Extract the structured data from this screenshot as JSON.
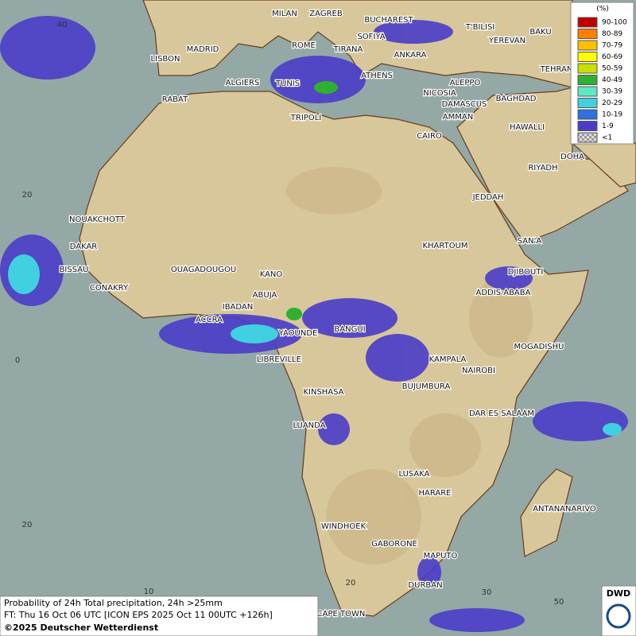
{
  "legend": {
    "unit": "(%)",
    "entries": [
      {
        "label": "90-100",
        "color": "#c00000"
      },
      {
        "label": "80-89",
        "color": "#ff7f00"
      },
      {
        "label": "70-79",
        "color": "#ffc000"
      },
      {
        "label": "60-69",
        "color": "#ffff00"
      },
      {
        "label": "50-59",
        "color": "#c8e000"
      },
      {
        "label": "40-49",
        "color": "#30b030"
      },
      {
        "label": "30-39",
        "color": "#60e8c0"
      },
      {
        "label": "20-29",
        "color": "#40d0e0"
      },
      {
        "label": "10-19",
        "color": "#3070e0"
      },
      {
        "label": "1-9",
        "color": "#4a3cc8"
      },
      {
        "label": "<1",
        "color": "#bbbbbb"
      }
    ]
  },
  "cities": [
    "MILAN",
    "ZAGREB",
    "BUCHAREST",
    "SOFIYA",
    "T'BILISI",
    "BAKU",
    "YEREVAN",
    "LISBON",
    "MADRID",
    "ROME",
    "TIRANA",
    "ANKARA",
    "TEHRAN",
    "ALGIERS",
    "TUNIS",
    "ATHENS",
    "ALEPPO",
    "RABAT",
    "NICOSIA",
    "BAGHDAD",
    "DAMASCUS",
    "TRIPOLI",
    "AMMAN",
    "HAWALLI",
    "CAIRO",
    "DOHA",
    "RIYADH",
    "JEDDAH",
    "NOUAKCHOTT",
    "DAKAR",
    "KHARTOUM",
    "SAN'A",
    "BISSAU",
    "OUAGADOUGOU",
    "DJIBOUTI",
    "KANO",
    "CONAKRY",
    "ABUJA",
    "ADDIS ABABA",
    "IBADAN",
    "ACCRA",
    "YAOUNDE",
    "BANGUI",
    "MOGADISHU",
    "LIBREVILLE",
    "KAMPALA",
    "NAIROBI",
    "KINSHASA",
    "BUJUMBURA",
    "DAR ES SALAAM",
    "LUANDA",
    "LUSAKA",
    "HARARE",
    "ANTANANARIVO",
    "WINDHOEK",
    "GABORONE",
    "MAPUTO",
    "DURBAN",
    "CAPE TOWN"
  ],
  "graticule": [
    "40",
    "20",
    "0",
    "20",
    "10",
    "20",
    "30",
    "50"
  ],
  "caption": {
    "line1": "Probability of 24h Total precipitation, 24h >25mm",
    "line2": "FT: Thu 16 Oct 06 UTC [ICON EPS 2025 Oct 11 00UTC +126h]",
    "copyright": "©2025 Deutscher Wetterdienst"
  },
  "logo": "DWD"
}
